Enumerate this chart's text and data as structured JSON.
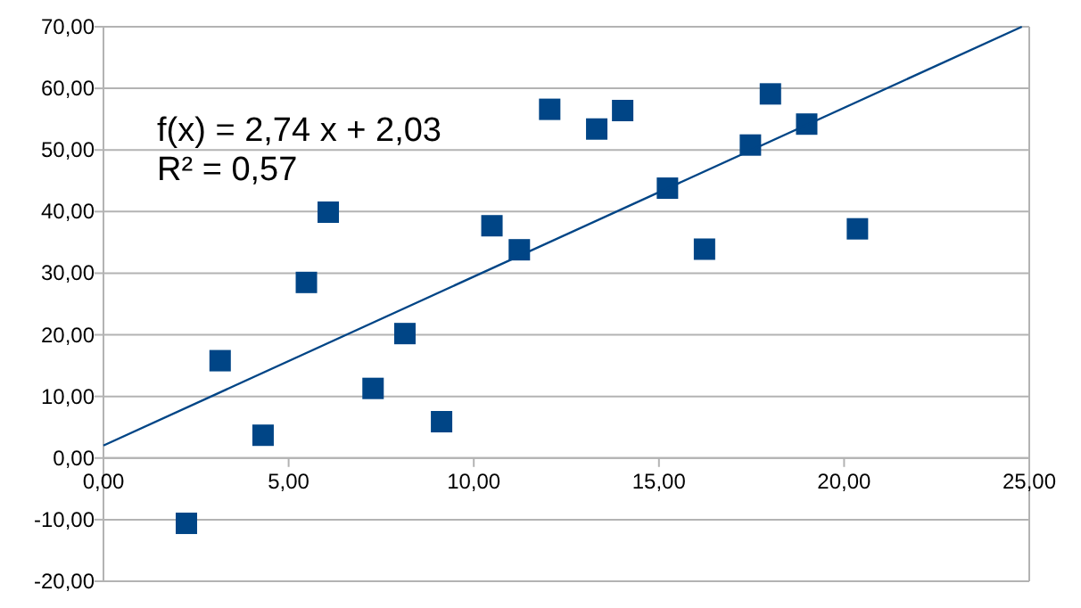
{
  "chart_data": {
    "type": "scatter",
    "x": [
      2.24,
      3.15,
      4.31,
      5.48,
      6.07,
      7.28,
      8.14,
      9.13,
      10.49,
      11.23,
      12.05,
      13.32,
      14.02,
      15.23,
      16.23,
      17.47,
      18.01,
      18.99,
      20.36
    ],
    "series": [
      {
        "color": "#004586",
        "marker": "square",
        "values": [
          -10.6,
          15.8,
          3.7,
          28.5,
          39.9,
          11.3,
          20.2,
          5.9,
          37.7,
          33.8,
          56.6,
          53.4,
          56.4,
          43.8,
          33.9,
          50.8,
          59.1,
          54.2,
          37.2
        ]
      },
      {
        "type": "line",
        "color": "#004586",
        "line_style": "solid",
        "x": [
          0,
          24.8
        ],
        "values": [
          2.03,
          70
        ]
      }
    ],
    "annotations": [
      "f(x) = 2,74 x + 2,03",
      "R² = 0,57"
    ],
    "xlim": [
      0,
      25
    ],
    "xticks": [
      {
        "value": 0,
        "label": "0,00"
      },
      {
        "value": 5,
        "label": "5,00"
      },
      {
        "value": 10,
        "label": "10,00"
      },
      {
        "value": 15,
        "label": "15,00"
      },
      {
        "value": 20,
        "label": "20,00"
      },
      {
        "value": 25,
        "label": "25,00"
      }
    ],
    "ylim": [
      -20,
      70
    ],
    "yticks": [
      {
        "value": -20,
        "label": "-20,00"
      },
      {
        "value": -10,
        "label": "-10,00"
      },
      {
        "value": 0,
        "label": "0,00"
      },
      {
        "value": 10,
        "label": "10,00"
      },
      {
        "value": 20,
        "label": "20,00"
      },
      {
        "value": 30,
        "label": "30,00"
      },
      {
        "value": 40,
        "label": "40,00"
      },
      {
        "value": 50,
        "label": "50,00"
      },
      {
        "value": 60,
        "label": "60,00"
      },
      {
        "value": 70,
        "label": "70,00"
      }
    ],
    "grid": "y"
  }
}
